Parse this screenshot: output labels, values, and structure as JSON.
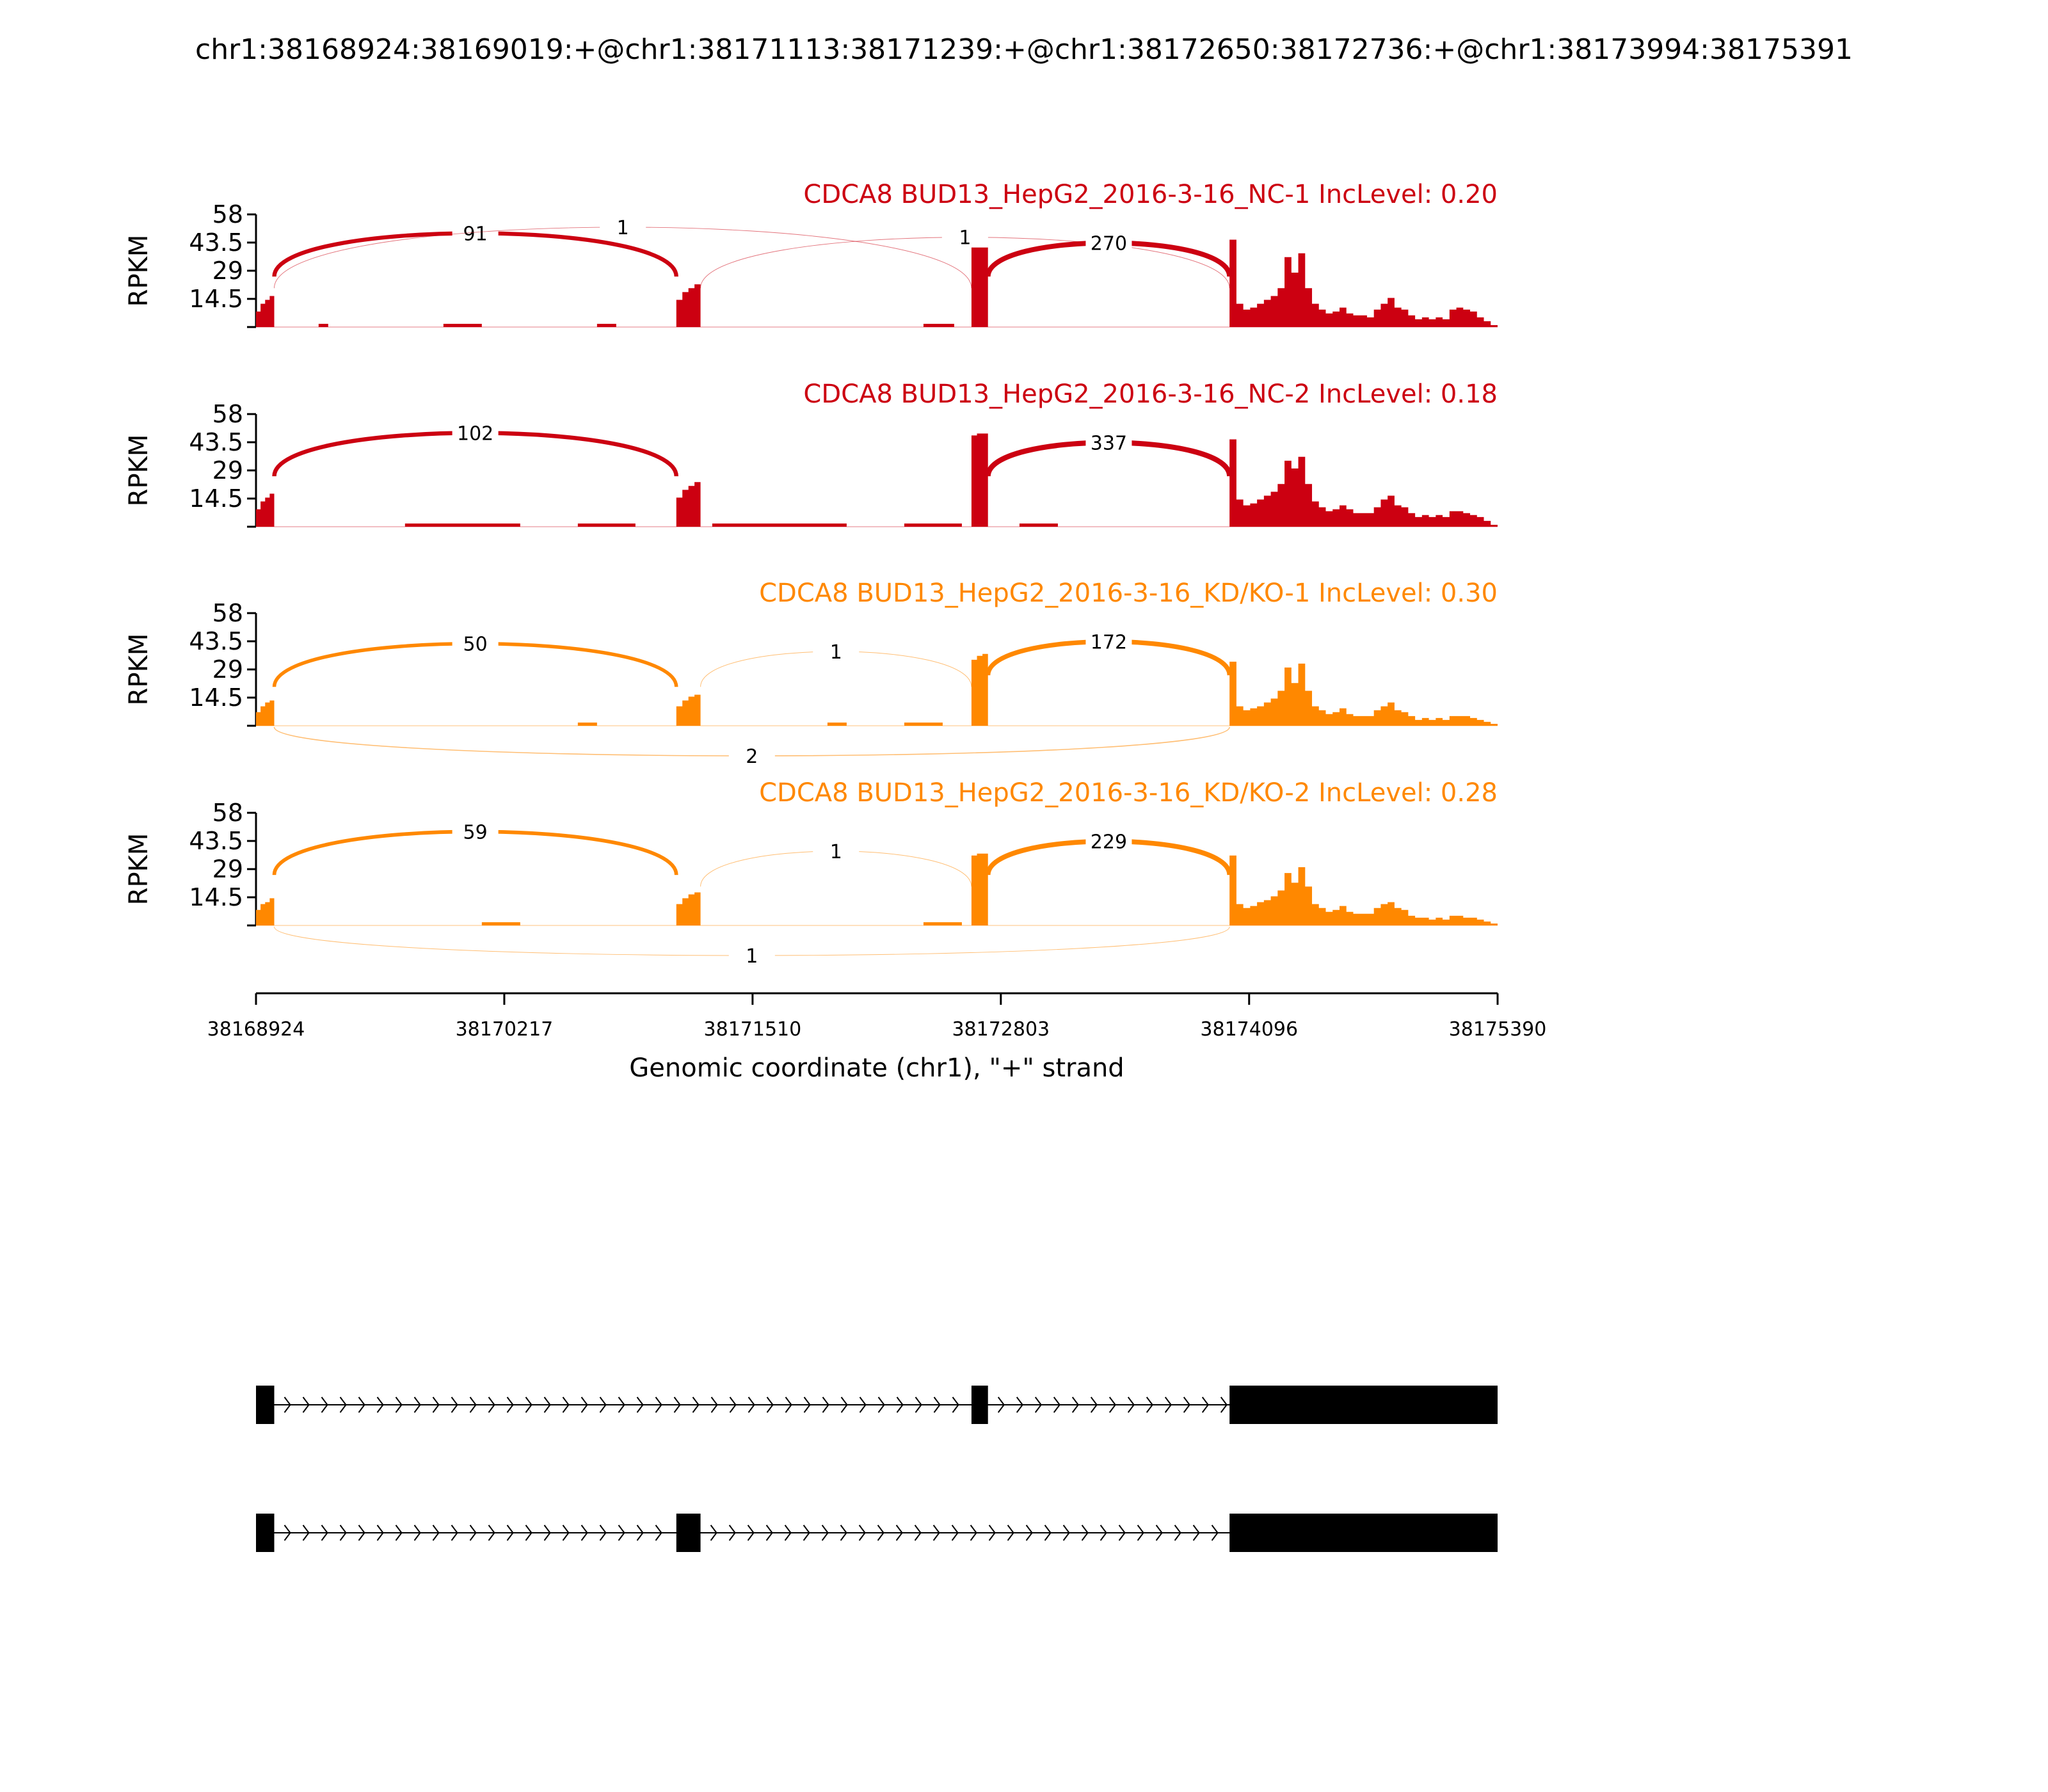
{
  "figure_title": "chr1:38168924:38169019:+@chr1:38171113:38171239:+@chr1:38172650:38172736:+@chr1:38173994:38175391",
  "x_axis": {
    "label": "Genomic coordinate (chr1), \"+\" strand",
    "min": 38168924,
    "max": 38175390,
    "ticks": [
      "38168924",
      "38170217",
      "38171510",
      "38172803",
      "38174096",
      "38175390"
    ]
  },
  "colors": {
    "nc": "#cc0011",
    "kd": "#ff8800",
    "axis": "#000000",
    "gene": "#000000"
  },
  "chart_data": {
    "type": "sashimi",
    "ylabel": "RPKM",
    "ylim": [
      0,
      58
    ],
    "yticks": [
      "58",
      "43.5",
      "29",
      "14.5"
    ],
    "exons": [
      [
        38168924,
        38169019
      ],
      [
        38171113,
        38171239
      ],
      [
        38172650,
        38172736
      ],
      [
        38173994,
        38175390
      ]
    ],
    "tracks": [
      {
        "title": "CDCA8 BUD13_HepG2_2016-3-16_NC-1 IncLevel: 0.20",
        "color_key": "nc",
        "coverage": [
          {
            "start": 38168924,
            "end": 38169019,
            "values": [
              8,
              12,
              14,
              16
            ]
          },
          {
            "start": 38171113,
            "end": 38171239,
            "values": [
              14,
              18,
              20,
              22
            ]
          },
          {
            "start": 38172650,
            "end": 38172736,
            "values": [
              42,
              42,
              42
            ]
          },
          {
            "start": 38173994,
            "end": 38175390,
            "values": [
              45,
              12,
              9,
              10,
              12,
              14,
              16,
              20,
              36,
              28,
              38,
              20,
              12,
              9,
              7,
              8,
              10,
              7,
              6,
              6,
              5,
              9,
              12,
              15,
              10,
              9,
              6,
              4,
              5,
              4,
              5,
              4,
              9,
              10,
              9,
              8,
              5,
              3,
              1
            ]
          }
        ],
        "low_coverage": [
          [
            38169250,
            38169300,
            1
          ],
          [
            38169900,
            38170100,
            1
          ],
          [
            38170700,
            38170800,
            1
          ],
          [
            38172400,
            38172560,
            1
          ]
        ],
        "junctions": [
          {
            "from": 38169019,
            "to": 38171113,
            "count": "91",
            "side": "above"
          },
          {
            "from": 38169019,
            "to": 38172650,
            "count": "1",
            "side": "above"
          },
          {
            "from": 38171239,
            "to": 38173994,
            "count": "1",
            "side": "above"
          },
          {
            "from": 38172736,
            "to": 38173994,
            "count": "270",
            "side": "above"
          }
        ]
      },
      {
        "title": "CDCA8 BUD13_HepG2_2016-3-16_NC-2 IncLevel: 0.18",
        "color_key": "nc",
        "coverage": [
          {
            "start": 38168924,
            "end": 38169019,
            "values": [
              9,
              13,
              15,
              17
            ]
          },
          {
            "start": 38171113,
            "end": 38171239,
            "values": [
              15,
              19,
              21,
              23
            ]
          },
          {
            "start": 38172650,
            "end": 38172736,
            "values": [
              47,
              48,
              48
            ]
          },
          {
            "start": 38173994,
            "end": 38175390,
            "values": [
              45,
              14,
              11,
              12,
              14,
              16,
              18,
              22,
              34,
              30,
              36,
              22,
              13,
              10,
              8,
              9,
              11,
              9,
              7,
              7,
              7,
              10,
              14,
              16,
              11,
              10,
              7,
              5,
              6,
              5,
              6,
              5,
              8,
              8,
              7,
              6,
              5,
              3,
              1
            ]
          }
        ],
        "low_coverage": [
          [
            38169700,
            38170300,
            1
          ],
          [
            38170600,
            38170900,
            1
          ],
          [
            38171300,
            38172000,
            1
          ],
          [
            38172300,
            38172600,
            1
          ],
          [
            38172900,
            38173100,
            1
          ]
        ],
        "junctions": [
          {
            "from": 38169019,
            "to": 38171113,
            "count": "102",
            "side": "above"
          },
          {
            "from": 38172736,
            "to": 38173994,
            "count": "337",
            "side": "above"
          }
        ]
      },
      {
        "title": "CDCA8 BUD13_HepG2_2016-3-16_KD/KO-1 IncLevel: 0.30",
        "color_key": "kd",
        "coverage": [
          {
            "start": 38168924,
            "end": 38169019,
            "values": [
              7,
              10,
              12,
              13
            ]
          },
          {
            "start": 38171113,
            "end": 38171239,
            "values": [
              10,
              13,
              15,
              16
            ]
          },
          {
            "start": 38172650,
            "end": 38172736,
            "values": [
              34,
              36,
              37
            ]
          },
          {
            "start": 38173994,
            "end": 38175390,
            "values": [
              33,
              10,
              8,
              9,
              10,
              12,
              14,
              18,
              30,
              22,
              32,
              18,
              10,
              8,
              6,
              7,
              9,
              6,
              5,
              5,
              5,
              8,
              10,
              12,
              8,
              7,
              5,
              3,
              4,
              3,
              4,
              3,
              5,
              5,
              5,
              4,
              3,
              2,
              1
            ]
          }
        ],
        "low_coverage": [
          [
            38170600,
            38170700,
            1
          ],
          [
            38171900,
            38172000,
            1
          ],
          [
            38172300,
            38172500,
            1
          ]
        ],
        "junctions": [
          {
            "from": 38169019,
            "to": 38171113,
            "count": "50",
            "side": "above"
          },
          {
            "from": 38171239,
            "to": 38172650,
            "count": "1",
            "side": "above"
          },
          {
            "from": 38172736,
            "to": 38173994,
            "count": "172",
            "side": "above"
          },
          {
            "from": 38169019,
            "to": 38173994,
            "count": "2",
            "side": "below"
          }
        ]
      },
      {
        "title": "CDCA8 BUD13_HepG2_2016-3-16_KD/KO-2 IncLevel: 0.28",
        "color_key": "kd",
        "coverage": [
          {
            "start": 38168924,
            "end": 38169019,
            "values": [
              8,
              11,
              12,
              14
            ]
          },
          {
            "start": 38171113,
            "end": 38171239,
            "values": [
              11,
              14,
              16,
              17
            ]
          },
          {
            "start": 38172650,
            "end": 38172736,
            "values": [
              36,
              37,
              37
            ]
          },
          {
            "start": 38173994,
            "end": 38175390,
            "values": [
              36,
              11,
              9,
              10,
              12,
              13,
              15,
              18,
              27,
              22,
              30,
              20,
              11,
              9,
              7,
              8,
              10,
              7,
              6,
              6,
              6,
              9,
              11,
              12,
              9,
              8,
              5,
              4,
              4,
              3,
              4,
              3,
              5,
              5,
              4,
              4,
              3,
              2,
              1
            ]
          }
        ],
        "low_coverage": [
          [
            38170100,
            38170300,
            1
          ],
          [
            38172400,
            38172600,
            1
          ]
        ],
        "junctions": [
          {
            "from": 38169019,
            "to": 38171113,
            "count": "59",
            "side": "above"
          },
          {
            "from": 38171239,
            "to": 38172650,
            "count": "1",
            "side": "above"
          },
          {
            "from": 38172736,
            "to": 38173994,
            "count": "229",
            "side": "above"
          },
          {
            "from": 38169019,
            "to": 38173994,
            "count": "1",
            "side": "below"
          }
        ]
      }
    ],
    "isoforms": [
      {
        "exons": [
          [
            38168924,
            38169019
          ],
          [
            38172650,
            38172736
          ],
          [
            38173994,
            38175390
          ]
        ]
      },
      {
        "exons": [
          [
            38168924,
            38169019
          ],
          [
            38171113,
            38171239
          ],
          [
            38173994,
            38175390
          ]
        ]
      }
    ]
  }
}
